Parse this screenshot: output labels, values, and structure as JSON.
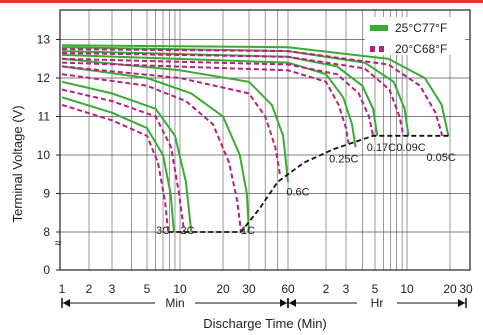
{
  "chart_data": {
    "type": "line",
    "xlabel": "Discharge Time (Min)",
    "ylabel": "Terminal Voltage (V)",
    "x_scale": "log",
    "xlim_min": [
      1,
      1200
    ],
    "ylim": [
      0,
      13.5
    ],
    "grid": true,
    "legend_position": "top-right",
    "x_ticks": [
      {
        "min": 1,
        "label": "1"
      },
      {
        "min": 2,
        "label": "2"
      },
      {
        "min": 3,
        "label": "3"
      },
      {
        "min": 5,
        "label": "5"
      },
      {
        "min": 10,
        "label": "10"
      },
      {
        "min": 20,
        "label": "20"
      },
      {
        "min": 30,
        "label": "30"
      },
      {
        "min": 60,
        "label": "60"
      },
      {
        "min": 120,
        "label": "2"
      },
      {
        "min": 180,
        "label": "3"
      },
      {
        "min": 300,
        "label": "5"
      },
      {
        "min": 600,
        "label": "10"
      },
      {
        "min": 1200,
        "label": "20"
      },
      {
        "min": 1800,
        "label": "30"
      }
    ],
    "y_ticks": [
      0,
      8,
      9,
      10,
      11,
      12,
      13
    ],
    "y_break_symbol": "≈",
    "unit_ranges": [
      {
        "label": "Min",
        "from_min": 1,
        "to_min": 60
      },
      {
        "label": "Hr",
        "from_min": 60,
        "to_min": 1800
      }
    ],
    "legend": [
      {
        "label": "25°C77°F",
        "color": "#3aaa35",
        "style": "solid"
      },
      {
        "label": "20°C68°F",
        "color": "#b5217e",
        "style": "dashed"
      }
    ],
    "colors": {
      "solid": "#3aaa35",
      "dashed": "#b5217e",
      "cutoff": "#111111"
    },
    "series": [
      {
        "rate": "3C",
        "temp": "25°C77°F",
        "points": [
          [
            1,
            11.5
          ],
          [
            3,
            11.1
          ],
          [
            5,
            10.7
          ],
          [
            7,
            10.0
          ],
          [
            8.2,
            9.0
          ],
          [
            8.8,
            8.0
          ]
        ]
      },
      {
        "rate": "3C",
        "temp": "20°C68°F",
        "points": [
          [
            1,
            11.3
          ],
          [
            3,
            10.9
          ],
          [
            5,
            10.5
          ],
          [
            6.3,
            9.8
          ],
          [
            7.3,
            8.8
          ],
          [
            7.8,
            8.0
          ]
        ]
      },
      {
        "rate": "2C",
        "temp": "25°C77°F",
        "points": [
          [
            1,
            11.9
          ],
          [
            3,
            11.6
          ],
          [
            6,
            11.2
          ],
          [
            9,
            10.5
          ],
          [
            11,
            9.3
          ],
          [
            12,
            8.0
          ]
        ]
      },
      {
        "rate": "2C",
        "temp": "20°C68°F",
        "points": [
          [
            1,
            11.7
          ],
          [
            3,
            11.4
          ],
          [
            6,
            11.0
          ],
          [
            8.3,
            10.2
          ],
          [
            9.8,
            9.0
          ],
          [
            10.7,
            8.0
          ]
        ]
      },
      {
        "rate": "1C",
        "temp": "25°C77°F",
        "points": [
          [
            1,
            12.3
          ],
          [
            5,
            12.0
          ],
          [
            12,
            11.6
          ],
          [
            20,
            11.0
          ],
          [
            26,
            10.0
          ],
          [
            29,
            9.0
          ],
          [
            30,
            8.0
          ]
        ]
      },
      {
        "rate": "1C",
        "temp": "20°C68°F",
        "points": [
          [
            1,
            12.1
          ],
          [
            5,
            11.8
          ],
          [
            11,
            11.4
          ],
          [
            17,
            10.8
          ],
          [
            22,
            9.8
          ],
          [
            25,
            8.8
          ],
          [
            26.5,
            8.0
          ]
        ]
      },
      {
        "rate": "0.6C",
        "temp": "25°C77°F",
        "points": [
          [
            1,
            12.5
          ],
          [
            10,
            12.2
          ],
          [
            30,
            11.9
          ],
          [
            45,
            11.3
          ],
          [
            55,
            10.5
          ],
          [
            60,
            9.3
          ]
        ]
      },
      {
        "rate": "0.6C",
        "temp": "20°C68°F",
        "points": [
          [
            1,
            12.3
          ],
          [
            10,
            12.0
          ],
          [
            30,
            11.6
          ],
          [
            40,
            11.0
          ],
          [
            48,
            10.2
          ],
          [
            52,
            9.5
          ]
        ]
      },
      {
        "rate": "0.25C",
        "temp": "25°C77°F",
        "points": [
          [
            1,
            12.6
          ],
          [
            60,
            12.4
          ],
          [
            120,
            12.1
          ],
          [
            170,
            11.5
          ],
          [
            200,
            10.8
          ],
          [
            213,
            10.2
          ]
        ]
      },
      {
        "rate": "0.25C",
        "temp": "20°C68°F",
        "points": [
          [
            1,
            12.4
          ],
          [
            60,
            12.2
          ],
          [
            120,
            11.9
          ],
          [
            155,
            11.3
          ],
          [
            180,
            10.7
          ],
          [
            188,
            10.3
          ]
        ]
      },
      {
        "rate": "0.17C",
        "temp": "25°C77°F",
        "points": [
          [
            1,
            12.7
          ],
          [
            60,
            12.55
          ],
          [
            150,
            12.3
          ],
          [
            240,
            11.8
          ],
          [
            290,
            11.2
          ],
          [
            315,
            10.5
          ]
        ]
      },
      {
        "rate": "0.17C",
        "temp": "20°C68°F",
        "points": [
          [
            1,
            12.5
          ],
          [
            60,
            12.35
          ],
          [
            150,
            12.1
          ],
          [
            225,
            11.6
          ],
          [
            270,
            11.0
          ],
          [
            290,
            10.5
          ]
        ]
      },
      {
        "rate": "0.09C",
        "temp": "25°C77°F",
        "points": [
          [
            1,
            12.8
          ],
          [
            60,
            12.7
          ],
          [
            250,
            12.4
          ],
          [
            450,
            11.9
          ],
          [
            570,
            11.2
          ],
          [
            615,
            10.5
          ]
        ]
      },
      {
        "rate": "0.09C",
        "temp": "20°C68°F",
        "points": [
          [
            1,
            12.65
          ],
          [
            60,
            12.55
          ],
          [
            250,
            12.25
          ],
          [
            410,
            11.7
          ],
          [
            510,
            11.0
          ],
          [
            555,
            10.5
          ]
        ]
      },
      {
        "rate": "0.05C",
        "temp": "25°C77°F",
        "points": [
          [
            1,
            12.85
          ],
          [
            60,
            12.8
          ],
          [
            400,
            12.5
          ],
          [
            800,
            12.0
          ],
          [
            1050,
            11.3
          ],
          [
            1170,
            10.5
          ]
        ]
      },
      {
        "rate": "0.05C",
        "temp": "20°C68°F",
        "points": [
          [
            1,
            12.75
          ],
          [
            60,
            12.7
          ],
          [
            400,
            12.35
          ],
          [
            740,
            11.8
          ],
          [
            950,
            11.1
          ],
          [
            1060,
            10.5
          ]
        ]
      }
    ],
    "cutoff_line": {
      "style": "dashed",
      "points": [
        [
          7.8,
          8.0
        ],
        [
          26.5,
          8.0
        ],
        [
          36,
          8.6
        ],
        [
          50,
          9.3
        ],
        [
          80,
          9.8
        ],
        [
          140,
          10.15
        ],
        [
          290,
          10.5
        ],
        [
          1170,
          10.5
        ]
      ]
    },
    "rate_labels": [
      {
        "text": "3C",
        "at": [
          7.0,
          7.6
        ]
      },
      {
        "text": "2C",
        "at": [
          11.3,
          7.6
        ]
      },
      {
        "text": "1C",
        "at": [
          29.5,
          7.6
        ]
      },
      {
        "text": "0.6C",
        "at": [
          72,
          8.95
        ]
      },
      {
        "text": "0.25C",
        "at": [
          172,
          9.8
        ]
      },
      {
        "text": "0.17C",
        "at": [
          345,
          10.1
        ]
      },
      {
        "text": "0.09C",
        "at": [
          640,
          10.1
        ]
      },
      {
        "text": "0.05C",
        "at": [
          1040,
          9.85
        ]
      }
    ]
  }
}
